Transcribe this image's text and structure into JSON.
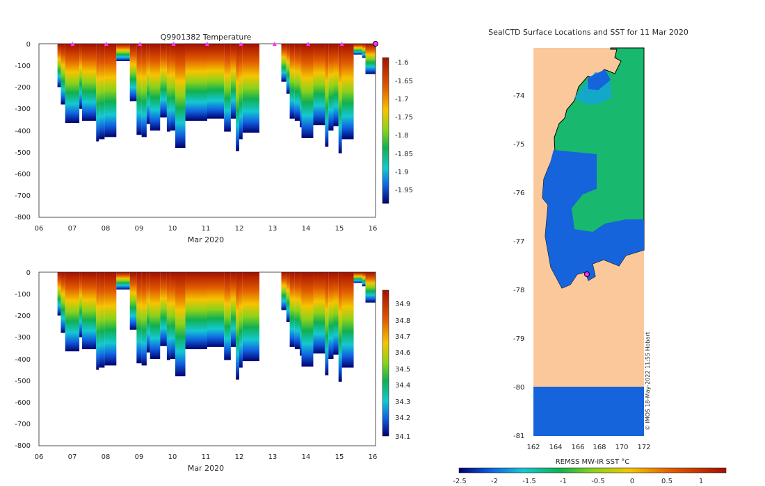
{
  "chart_data": [
    {
      "type": "heatmap",
      "title": "Q9901382  Temperature",
      "xlabel": "Mar 2020",
      "ylabel": "",
      "xlim": [
        6,
        16
      ],
      "ylim": [
        -800,
        0
      ],
      "x_ticks": [
        "06",
        "07",
        "08",
        "09",
        "10",
        "11",
        "12",
        "13",
        "14",
        "15",
        "16"
      ],
      "y_ticks": [
        "0",
        "-100",
        "-200",
        "-300",
        "-400",
        "-500",
        "-600",
        "-700",
        "-800"
      ],
      "colorbar": {
        "min": -1.98,
        "max": -1.58,
        "ticks": [
          "-1.6",
          "-1.65",
          "-1.7",
          "-1.75",
          "-1.8",
          "-1.85",
          "-1.9",
          "-1.95"
        ]
      },
      "surface_marker_days": [
        7,
        8,
        9,
        10,
        11,
        12,
        13,
        14,
        15
      ],
      "profiles": [
        {
          "x0": 6.55,
          "x1": 6.65,
          "bottom": -200
        },
        {
          "x0": 6.65,
          "x1": 6.78,
          "bottom": -280
        },
        {
          "x0": 6.78,
          "x1": 7.2,
          "bottom": -365
        },
        {
          "x0": 7.2,
          "x1": 7.28,
          "bottom": -300
        },
        {
          "x0": 7.28,
          "x1": 7.7,
          "bottom": -355
        },
        {
          "x0": 7.7,
          "x1": 7.78,
          "bottom": -450
        },
        {
          "x0": 7.78,
          "x1": 7.95,
          "bottom": -440
        },
        {
          "x0": 7.95,
          "x1": 8.3,
          "bottom": -430
        },
        {
          "x0": 8.3,
          "x1": 8.7,
          "bottom": -80
        },
        {
          "x0": 8.7,
          "x1": 8.9,
          "bottom": -265
        },
        {
          "x0": 8.9,
          "x1": 9.05,
          "bottom": -420
        },
        {
          "x0": 9.05,
          "x1": 9.2,
          "bottom": -430
        },
        {
          "x0": 9.2,
          "x1": 9.3,
          "bottom": -370
        },
        {
          "x0": 9.3,
          "x1": 9.6,
          "bottom": -400
        },
        {
          "x0": 9.6,
          "x1": 9.8,
          "bottom": -340
        },
        {
          "x0": 9.8,
          "x1": 9.9,
          "bottom": -405
        },
        {
          "x0": 9.9,
          "x1": 10.05,
          "bottom": -400
        },
        {
          "x0": 10.05,
          "x1": 10.35,
          "bottom": -480
        },
        {
          "x0": 10.35,
          "x1": 11.0,
          "bottom": -355
        },
        {
          "x0": 11.0,
          "x1": 11.5,
          "bottom": -345
        },
        {
          "x0": 11.5,
          "x1": 11.7,
          "bottom": -405
        },
        {
          "x0": 11.7,
          "x1": 11.85,
          "bottom": -345
        },
        {
          "x0": 11.85,
          "x1": 11.95,
          "bottom": -495
        },
        {
          "x0": 11.95,
          "x1": 12.05,
          "bottom": -440
        },
        {
          "x0": 12.05,
          "x1": 12.55,
          "bottom": -410
        },
        {
          "x0": 13.2,
          "x1": 13.35,
          "bottom": -175
        },
        {
          "x0": 13.35,
          "x1": 13.45,
          "bottom": -230
        },
        {
          "x0": 13.45,
          "x1": 13.6,
          "bottom": -345
        },
        {
          "x0": 13.6,
          "x1": 13.75,
          "bottom": -355
        },
        {
          "x0": 13.75,
          "x1": 13.8,
          "bottom": -385
        },
        {
          "x0": 13.8,
          "x1": 14.15,
          "bottom": -435
        },
        {
          "x0": 14.15,
          "x1": 14.5,
          "bottom": -375
        },
        {
          "x0": 14.5,
          "x1": 14.6,
          "bottom": -475
        },
        {
          "x0": 14.6,
          "x1": 14.75,
          "bottom": -400
        },
        {
          "x0": 14.75,
          "x1": 14.9,
          "bottom": -380
        },
        {
          "x0": 14.9,
          "x1": 15.0,
          "bottom": -505
        },
        {
          "x0": 15.0,
          "x1": 15.35,
          "bottom": -440
        },
        {
          "x0": 15.35,
          "x1": 15.6,
          "bottom": -50
        },
        {
          "x0": 15.6,
          "x1": 15.7,
          "bottom": -65
        },
        {
          "x0": 15.7,
          "x1": 16.05,
          "bottom": -140
        }
      ]
    },
    {
      "type": "heatmap",
      "title": "",
      "xlabel": "Mar 2020",
      "ylabel": "",
      "xlim": [
        6,
        16
      ],
      "ylim": [
        -800,
        0
      ],
      "x_ticks": [
        "06",
        "07",
        "08",
        "09",
        "10",
        "11",
        "12",
        "13",
        "14",
        "15",
        "16"
      ],
      "y_ticks": [
        "0",
        "-100",
        "-200",
        "-300",
        "-400",
        "-500",
        "-600",
        "-700",
        "-800"
      ],
      "colorbar": {
        "min": 34.1,
        "max": 35.0,
        "ticks": [
          "34.9",
          "34.8",
          "34.7",
          "34.6",
          "34.5",
          "34.4",
          "34.3",
          "34.2",
          "34.1"
        ]
      },
      "surface_marker_days": []
    },
    {
      "type": "heatmap",
      "title": "SealCTD Surface Locations and SST for 11 Mar 2020",
      "xlabel": "",
      "ylabel": "",
      "xlim": [
        162,
        172
      ],
      "ylim": [
        -81,
        -73
      ],
      "x_ticks": [
        "162",
        "164",
        "166",
        "168",
        "170",
        "172"
      ],
      "y_ticks": [
        "-74",
        "-75",
        "-76",
        "-77",
        "-78",
        "-79",
        "-80",
        "-81"
      ],
      "colorbar": {
        "label": "REMSS MW-IR SST °C",
        "min": -2.5,
        "max": 1.35,
        "ticks": [
          "-2.5",
          "-2",
          "-1.5",
          "-1",
          "-0.5",
          "0",
          "0.5",
          "1"
        ]
      },
      "seal_location": {
        "lon": 166.95,
        "lat": -77.7
      },
      "credit": "© IMOS 18-May-2022 11:55 Hobart"
    }
  ]
}
